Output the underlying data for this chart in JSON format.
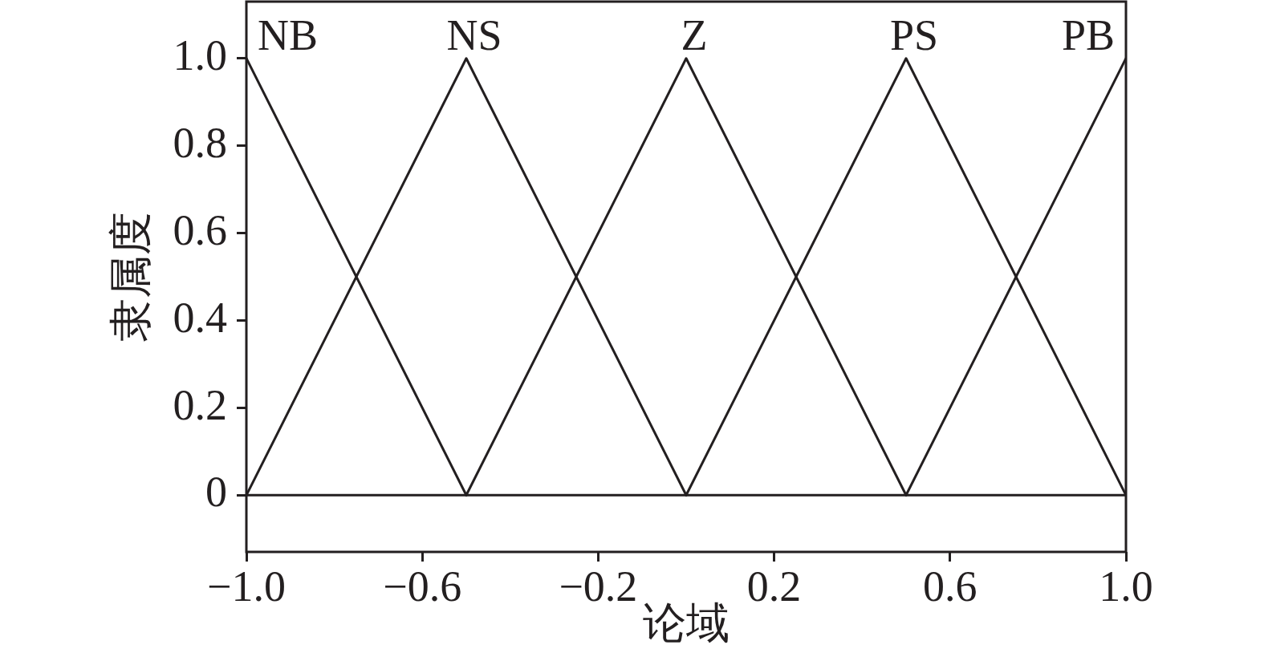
{
  "chart_data": {
    "type": "line",
    "xlabel": "论域",
    "ylabel": "隶属度",
    "xlim": [
      -1,
      1
    ],
    "xticks": [
      {
        "value": -1,
        "label": "−1.0"
      },
      {
        "value": -0.6,
        "label": "−0.6"
      },
      {
        "value": -0.2,
        "label": "−0.2"
      },
      0.2,
      0.6,
      {
        "value": 1,
        "label": "1.0"
      }
    ],
    "ylim": [
      -0.13,
      1.13
    ],
    "yticks": [
      0,
      0.2,
      0.4,
      0.6,
      0.8,
      {
        "value": 1,
        "label": "1.0"
      }
    ],
    "marker": "none",
    "ref_lines": [
      {
        "axis": "y",
        "value": 0
      }
    ],
    "series": [
      {
        "name": "NB",
        "color": "#231f20",
        "x": [
          -1,
          -0.5
        ],
        "values": [
          1,
          0
        ]
      },
      {
        "name": "NS",
        "color": "#231f20",
        "x": [
          -1,
          -0.5,
          0
        ],
        "values": [
          0,
          1,
          0
        ]
      },
      {
        "name": "Z",
        "color": "#231f20",
        "x": [
          -0.5,
          0,
          0.5
        ],
        "values": [
          0,
          1,
          0
        ]
      },
      {
        "name": "PS",
        "color": "#231f20",
        "x": [
          0,
          0.5,
          1
        ],
        "values": [
          0,
          1,
          0
        ]
      },
      {
        "name": "PB",
        "color": "#231f20",
        "x": [
          0.5,
          1
        ],
        "values": [
          0,
          1
        ]
      }
    ]
  }
}
